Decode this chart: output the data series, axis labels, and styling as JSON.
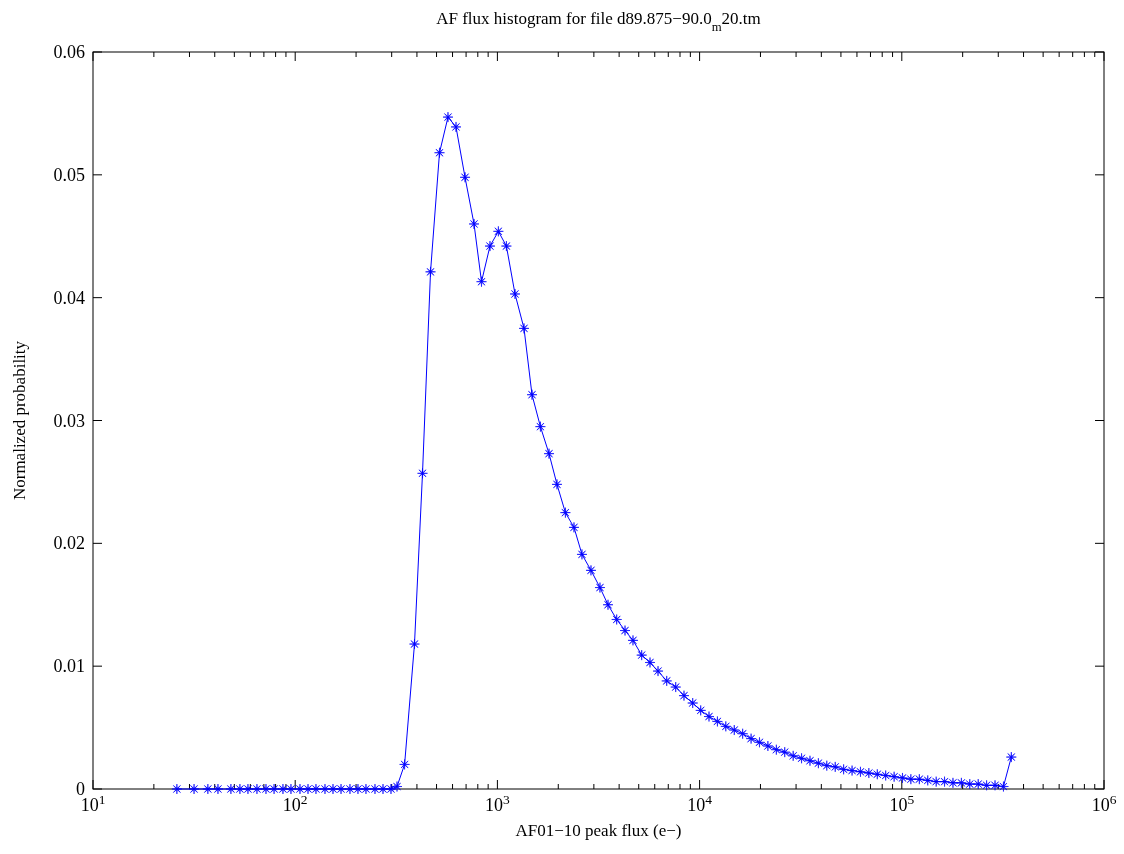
{
  "chart_data": {
    "type": "line",
    "title": "AF flux histogram for file d89.875−90.0$_{m}$20.tm",
    "xlabel": "AF01−10 peak flux (e−)",
    "ylabel": "Normalized probability",
    "log": "x",
    "marker": "star",
    "line_style": "solid",
    "grid": false,
    "xlim": [
      10,
      1000000
    ],
    "xticks": [
      {
        "value": 10,
        "label": "10$^{1}$"
      },
      {
        "value": 20,
        "label": null
      },
      {
        "value": 30,
        "label": null
      },
      {
        "value": 40,
        "label": null
      },
      {
        "value": 50,
        "label": null
      },
      {
        "value": 60,
        "label": null
      },
      {
        "value": 70,
        "label": null
      },
      {
        "value": 80,
        "label": null
      },
      {
        "value": 90,
        "label": null
      },
      {
        "value": 100,
        "label": "10$^{2}$"
      },
      {
        "value": 200,
        "label": null
      },
      {
        "value": 300,
        "label": null
      },
      {
        "value": 400,
        "label": null
      },
      {
        "value": 500,
        "label": null
      },
      {
        "value": 600,
        "label": null
      },
      {
        "value": 700,
        "label": null
      },
      {
        "value": 800,
        "label": null
      },
      {
        "value": 900,
        "label": null
      },
      {
        "value": 1000,
        "label": "10$^{3}$"
      },
      {
        "value": 2000,
        "label": null
      },
      {
        "value": 3000,
        "label": null
      },
      {
        "value": 4000,
        "label": null
      },
      {
        "value": 5000,
        "label": null
      },
      {
        "value": 6000,
        "label": null
      },
      {
        "value": 7000,
        "label": null
      },
      {
        "value": 8000,
        "label": null
      },
      {
        "value": 9000,
        "label": null
      },
      {
        "value": 10000,
        "label": "10$^{4}$"
      },
      {
        "value": 20000,
        "label": null
      },
      {
        "value": 30000,
        "label": null
      },
      {
        "value": 40000,
        "label": null
      },
      {
        "value": 50000,
        "label": null
      },
      {
        "value": 60000,
        "label": null
      },
      {
        "value": 70000,
        "label": null
      },
      {
        "value": 80000,
        "label": null
      },
      {
        "value": 90000,
        "label": null
      },
      {
        "value": 100000,
        "label": "10$^{5}$"
      },
      {
        "value": 200000,
        "label": null
      },
      {
        "value": 300000,
        "label": null
      },
      {
        "value": 400000,
        "label": null
      },
      {
        "value": 500000,
        "label": null
      },
      {
        "value": 600000,
        "label": null
      },
      {
        "value": 700000,
        "label": null
      },
      {
        "value": 800000,
        "label": null
      },
      {
        "value": 900000,
        "label": null
      },
      {
        "value": 1000000,
        "label": "10$^{6}$"
      }
    ],
    "ylim": [
      0,
      0.06
    ],
    "yticks": [
      {
        "value": 0,
        "label": "0"
      },
      {
        "value": 0.01,
        "label": "0.01"
      },
      {
        "value": 0.02,
        "label": "0.02"
      },
      {
        "value": 0.03,
        "label": "0.03"
      },
      {
        "value": 0.04,
        "label": "0.04"
      },
      {
        "value": 0.05,
        "label": "0.05"
      },
      {
        "value": 0.06,
        "label": "0.06"
      }
    ],
    "series": [
      {
        "color": "#0000ff",
        "x": [
          26,
          31.6,
          37,
          41.5,
          48.1,
          53.3,
          58.4,
          64.7,
          71.7,
          78.6,
          87,
          95.3,
          105.6,
          115.7,
          126.7,
          140.4,
          153.8,
          168.5,
          186.6,
          204.4,
          223.9,
          248.1,
          271.8,
          297.7,
          318.8,
          347.6,
          389,
          426.2,
          466.9,
          517.2,
          569.7,
          624.2,
          691.7,
          766.3,
          834.4,
          919.1,
          1011,
          1108,
          1222,
          1354,
          1483,
          1632,
          1800,
          1971,
          2169,
          2392,
          2620,
          2903,
          3216,
          3524,
          3890,
          4277,
          4684,
          5172,
          5685,
          6228,
          6877,
          7619,
          8372,
          9245,
          10127,
          11131,
          12250,
          13480,
          14840,
          16330,
          17970,
          19780,
          21770,
          23960,
          26370,
          29020,
          31940,
          35150,
          38680,
          42570,
          46850,
          51560,
          56750,
          62450,
          68730,
          75640,
          83240,
          91610,
          100800,
          110900,
          122100,
          134400,
          147900,
          162700,
          179100,
          197100,
          216900,
          238700,
          262700,
          289100,
          318200,
          348000
        ],
        "values": [
          0,
          0,
          0,
          0,
          0,
          0,
          0,
          0,
          0,
          0,
          0,
          0,
          0,
          0,
          0,
          0,
          0,
          0,
          0,
          0,
          0,
          0,
          0,
          0,
          0.0002,
          0.002,
          0.0118,
          0.0257,
          0.0421,
          0.0518,
          0.0547,
          0.0539,
          0.0498,
          0.046,
          0.0413,
          0.0442,
          0.0454,
          0.0442,
          0.0403,
          0.0375,
          0.0321,
          0.0295,
          0.0273,
          0.0248,
          0.0225,
          0.0213,
          0.0191,
          0.0178,
          0.0164,
          0.015,
          0.0138,
          0.0129,
          0.0121,
          0.0109,
          0.0103,
          0.0096,
          0.0088,
          0.0083,
          0.0076,
          0.007,
          0.0064,
          0.0059,
          0.0055,
          0.0051,
          0.0048,
          0.0045,
          0.0041,
          0.0038,
          0.0035,
          0.0032,
          0.003,
          0.0027,
          0.0025,
          0.0023,
          0.0021,
          0.0019,
          0.0018,
          0.0016,
          0.0015,
          0.0014,
          0.0013,
          0.0012,
          0.0011,
          0.001,
          0.0009,
          0.0008,
          0.0008,
          0.0007,
          0.0006,
          0.0006,
          0.0005,
          0.0005,
          0.0004,
          0.0004,
          0.0003,
          0.0003,
          0.0002,
          0.0026
        ]
      }
    ]
  }
}
